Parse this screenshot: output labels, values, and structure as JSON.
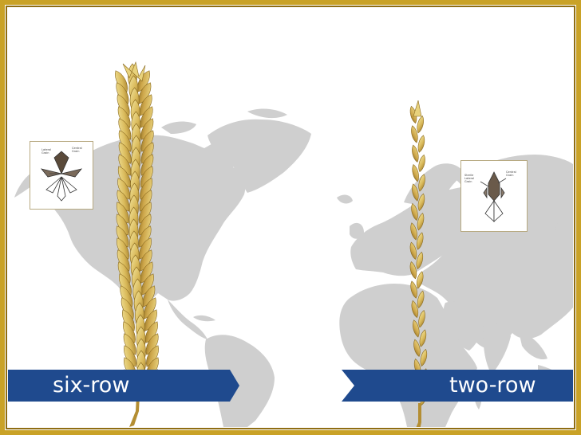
{
  "colors": {
    "frame_gold": "#c9a227",
    "frame_gold_dark": "#8f6d12",
    "map_gray": "#cfcfcf",
    "banner_blue": "#1f4a8e",
    "wheat_light": "#ecd77a",
    "wheat_mid": "#c9a444",
    "wheat_dark": "#8a6a1f"
  },
  "icons": [
    "world-map",
    "barley-spike-six-row",
    "barley-spike-two-row",
    "six-row-spikelet-diagram",
    "two-row-spikelet-diagram"
  ],
  "left": {
    "banner_label": "six-row",
    "diagram_labels": {
      "lateral": "Lateral\nGrain",
      "central": "Central\nGrain"
    }
  },
  "right": {
    "banner_label": "two-row",
    "diagram_labels": {
      "lateral": "Sterile\nLateral\nGrain",
      "central": "Central\nGrain"
    }
  }
}
